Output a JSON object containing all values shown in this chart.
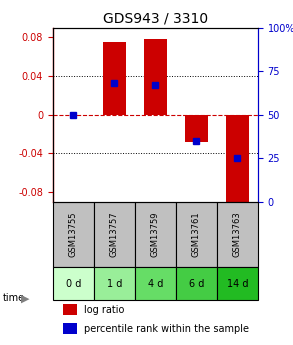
{
  "title": "GDS943 / 3310",
  "samples": [
    "GSM13755",
    "GSM13757",
    "GSM13759",
    "GSM13761",
    "GSM13763"
  ],
  "time_labels": [
    "0 d",
    "1 d",
    "4 d",
    "6 d",
    "14 d"
  ],
  "log_ratios": [
    0.0,
    0.075,
    0.078,
    -0.028,
    -0.09
  ],
  "percentile_ranks": [
    50,
    68,
    67,
    35,
    25
  ],
  "ylim": [
    -0.09,
    0.09
  ],
  "yticks_left": [
    -0.08,
    -0.04,
    0,
    0.04,
    0.08
  ],
  "yticks_right": [
    0,
    25,
    50,
    75,
    100
  ],
  "bar_color": "#cc0000",
  "dot_color": "#0000cc",
  "grid_color": "#000000",
  "zero_line_color": "#cc0000",
  "title_color": "#000000",
  "left_axis_color": "#cc0000",
  "right_axis_color": "#0000cc",
  "gsm_bg_color": "#c0c0c0",
  "time_bg_colors": [
    "#ccffcc",
    "#99ee99",
    "#66dd66",
    "#44cc44",
    "#22bb22"
  ],
  "legend_log_color": "#cc0000",
  "legend_pct_color": "#0000cc"
}
